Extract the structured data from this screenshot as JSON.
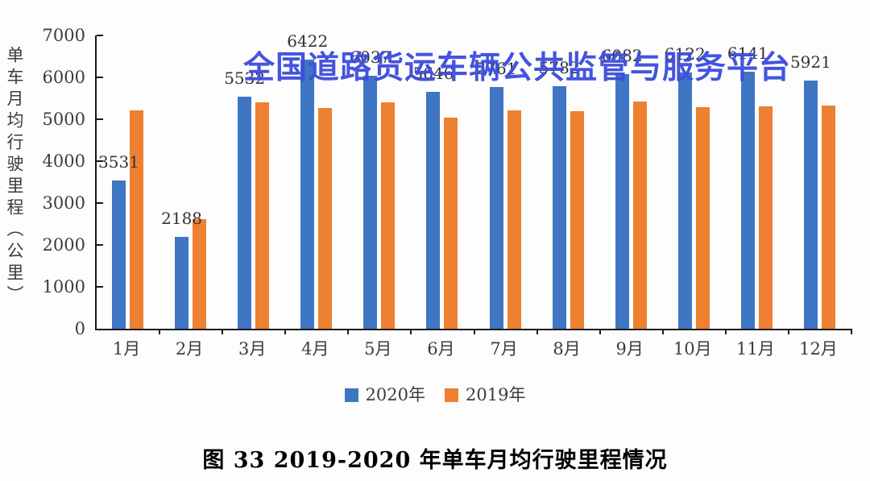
{
  "watermark": {
    "text": "全国道路货运车辆公共监管与服务平台",
    "color": "#3D4EDC"
  },
  "figure_caption": "图 33  2019-2020 年单车月均行驶里程情况",
  "chart_data": {
    "type": "bar",
    "title": "",
    "ylabel": "单车月均行驶里程（公里）",
    "xlabel": "",
    "ylim": [
      0,
      7000
    ],
    "yticks": [
      0,
      1000,
      2000,
      3000,
      4000,
      5000,
      6000,
      7000
    ],
    "grid": false,
    "legend_position": "bottom",
    "categories": [
      "1月",
      "2月",
      "3月",
      "4月",
      "5月",
      "6月",
      "7月",
      "8月",
      "9月",
      "10月",
      "11月",
      "12月"
    ],
    "series": [
      {
        "name": "2020年",
        "color": "#3F76C4",
        "data_labels": true,
        "values": [
          3531,
          2188,
          5532,
          6422,
          6037,
          5646,
          5761,
          5782,
          6082,
          6122,
          6141,
          5921
        ]
      },
      {
        "name": "2019年",
        "color": "#EE8031",
        "data_labels": false,
        "values_estimated_from_bars": true,
        "values": [
          5210,
          2610,
          5400,
          5270,
          5410,
          5040,
          5210,
          5190,
          5420,
          5280,
          5300,
          5320
        ]
      }
    ]
  }
}
